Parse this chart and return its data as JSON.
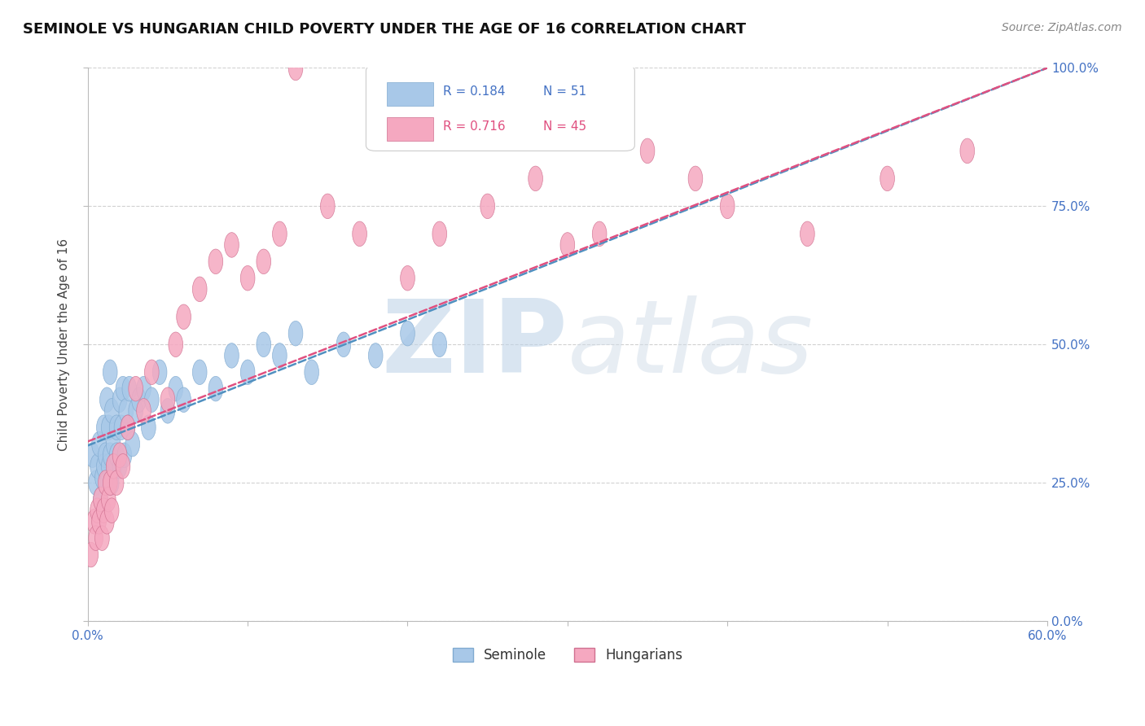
{
  "title": "SEMINOLE VS HUNGARIAN CHILD POVERTY UNDER THE AGE OF 16 CORRELATION CHART",
  "source": "Source: ZipAtlas.com",
  "ylabel": "Child Poverty Under the Age of 16",
  "xlim": [
    0.0,
    60.0
  ],
  "ylim": [
    0.0,
    100.0
  ],
  "yticks": [
    0.0,
    25.0,
    50.0,
    75.0,
    100.0
  ],
  "xticks": [
    0.0,
    10.0,
    20.0,
    30.0,
    40.0,
    50.0,
    60.0
  ],
  "seminole_R": 0.184,
  "seminole_N": 51,
  "hungarian_R": 0.716,
  "hungarian_N": 45,
  "seminole_color": "#a8c8e8",
  "hungarian_color": "#f5a8c0",
  "seminole_line_color": "#5090c0",
  "hungarian_line_color": "#e05080",
  "background_color": "#ffffff",
  "watermark": "ZIPAtlas",
  "watermark_color": "#c0d4e8",
  "seminole_x": [
    0.3,
    0.5,
    0.6,
    0.7,
    0.8,
    0.9,
    1.0,
    1.0,
    1.1,
    1.2,
    1.2,
    1.3,
    1.3,
    1.4,
    1.4,
    1.5,
    1.5,
    1.6,
    1.7,
    1.8,
    1.8,
    2.0,
    2.0,
    2.1,
    2.2,
    2.3,
    2.4,
    2.5,
    2.6,
    2.8,
    3.0,
    3.2,
    3.5,
    3.8,
    4.0,
    4.5,
    5.0,
    5.5,
    6.0,
    7.0,
    8.0,
    9.0,
    10.0,
    11.0,
    12.0,
    13.0,
    14.0,
    16.0,
    18.0,
    20.0,
    22.0
  ],
  "seminole_y": [
    30,
    25,
    28,
    32,
    22,
    26,
    28,
    35,
    30,
    25,
    40,
    28,
    35,
    30,
    45,
    25,
    38,
    32,
    28,
    35,
    30,
    40,
    28,
    35,
    42,
    30,
    38,
    35,
    42,
    32,
    38,
    40,
    42,
    35,
    40,
    45,
    38,
    42,
    40,
    45,
    42,
    48,
    45,
    50,
    48,
    52,
    45,
    50,
    48,
    52,
    50
  ],
  "hungarian_x": [
    0.2,
    0.4,
    0.5,
    0.6,
    0.7,
    0.8,
    0.9,
    1.0,
    1.1,
    1.2,
    1.3,
    1.4,
    1.5,
    1.6,
    1.8,
    2.0,
    2.2,
    2.5,
    3.0,
    3.5,
    4.0,
    5.0,
    5.5,
    6.0,
    7.0,
    8.0,
    9.0,
    10.0,
    11.0,
    12.0,
    13.0,
    15.0,
    17.0,
    20.0,
    22.0,
    25.0,
    28.0,
    30.0,
    32.0,
    35.0,
    38.0,
    40.0,
    45.0,
    50.0,
    55.0
  ],
  "hungarian_y": [
    12,
    18,
    15,
    20,
    18,
    22,
    15,
    20,
    25,
    18,
    22,
    25,
    20,
    28,
    25,
    30,
    28,
    35,
    42,
    38,
    45,
    40,
    50,
    55,
    60,
    65,
    68,
    62,
    65,
    70,
    100,
    75,
    70,
    62,
    70,
    75,
    80,
    68,
    70,
    85,
    80,
    75,
    70,
    80,
    85
  ]
}
